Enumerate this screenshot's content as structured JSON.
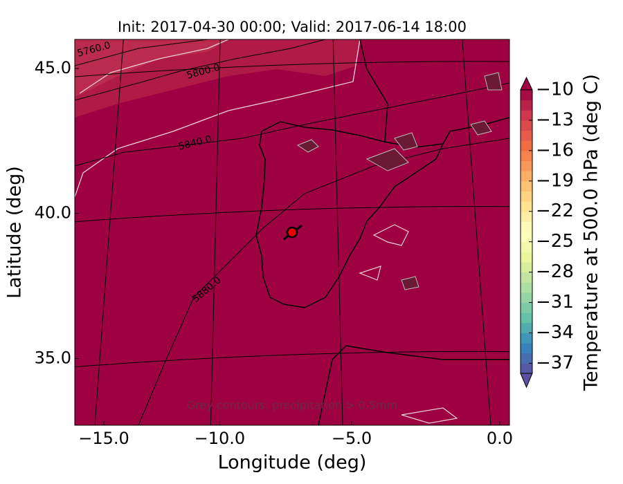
{
  "chart_data": {
    "type": "map",
    "title": "Init: 2017-04-30 00:00; Valid: 2017-06-14 18:00",
    "xlabel": "Longitude (deg)",
    "ylabel": "Latitude (deg)",
    "xlim": [
      -16.4,
      0.3
    ],
    "xticks": [
      {
        "value": -15,
        "label": "−15.0"
      },
      {
        "value": -10,
        "label": "−10.0"
      },
      {
        "value": -5,
        "label": "−5.0"
      },
      {
        "value": 0,
        "label": "0.0"
      }
    ],
    "ylim": [
      32.7,
      46.0
    ],
    "yticks": [
      {
        "value": 35,
        "label": "35.0"
      },
      {
        "value": 40,
        "label": "40.0"
      },
      {
        "value": 45,
        "label": "45.0"
      }
    ],
    "grid": true,
    "contour_labels": [
      "5760.0",
      "5800.0",
      "5840.0",
      "5880.0"
    ],
    "annotation": "Grey contours: precipitation > 0.5mm",
    "colorbar": {
      "label": "Temperature at 500.0 hPa (deg C)",
      "clim": [
        -38,
        -10
      ],
      "ticks": [
        {
          "value": -10,
          "label": "−10"
        },
        {
          "value": -13,
          "label": "−13"
        },
        {
          "value": -16,
          "label": "−16"
        },
        {
          "value": -19,
          "label": "−19"
        },
        {
          "value": -22,
          "label": "−22"
        },
        {
          "value": -25,
          "label": "−25"
        },
        {
          "value": -28,
          "label": "−28"
        },
        {
          "value": -31,
          "label": "−31"
        },
        {
          "value": -34,
          "label": "−34"
        },
        {
          "value": -37,
          "label": "−37"
        }
      ],
      "colormap": [
        "#5e4fa2",
        "#3288bd",
        "#66c2a5",
        "#abdda4",
        "#e6f598",
        "#ffffbf",
        "#fee08b",
        "#fdae61",
        "#f46d43",
        "#d53e4f",
        "#9e0142"
      ]
    }
  }
}
